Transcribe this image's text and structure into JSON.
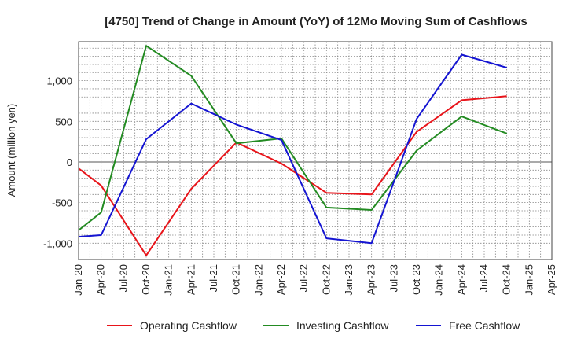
{
  "chart_data": {
    "type": "line",
    "title": "[4750]  Trend of Change in Amount (YoY) of 12Mo Moving Sum of Cashflows",
    "xlabel": "",
    "ylabel": "Amount (million yen)",
    "ylim": [
      -1200,
      1480
    ],
    "yticks": [
      -1000,
      -500,
      0,
      500,
      1000
    ],
    "ytick_labels": [
      "-1,000",
      "-500",
      "0",
      "500",
      "1,000"
    ],
    "categories": [
      "Jan-20",
      "Apr-20",
      "Jul-20",
      "Oct-20",
      "Jan-21",
      "Apr-21",
      "Jul-21",
      "Oct-21",
      "Jan-22",
      "Apr-22",
      "Jul-22",
      "Oct-22",
      "Jan-23",
      "Apr-23",
      "Jul-23",
      "Oct-23",
      "Jan-24",
      "Apr-24",
      "Jul-24",
      "Oct-24",
      "Jan-25",
      "Apr-25"
    ],
    "grid": true,
    "legend_position": "bottom",
    "series": [
      {
        "name": "Operating Cashflow",
        "color": "#e8141a",
        "values": [
          -80,
          -290,
          null,
          -1150,
          null,
          -330,
          null,
          240,
          null,
          -20,
          null,
          -380,
          null,
          -400,
          null,
          370,
          null,
          760,
          null,
          810,
          null,
          null
        ]
      },
      {
        "name": "Investing Cashflow",
        "color": "#238b22",
        "values": [
          -840,
          -620,
          null,
          1430,
          null,
          1060,
          null,
          230,
          null,
          290,
          null,
          -560,
          null,
          -590,
          null,
          140,
          null,
          560,
          null,
          350,
          null,
          null
        ]
      },
      {
        "name": "Free Cashflow",
        "color": "#1414d2",
        "values": [
          -920,
          -900,
          null,
          280,
          null,
          720,
          null,
          460,
          null,
          270,
          null,
          -940,
          null,
          -1000,
          null,
          530,
          null,
          1320,
          null,
          1160,
          null,
          null
        ]
      }
    ]
  }
}
